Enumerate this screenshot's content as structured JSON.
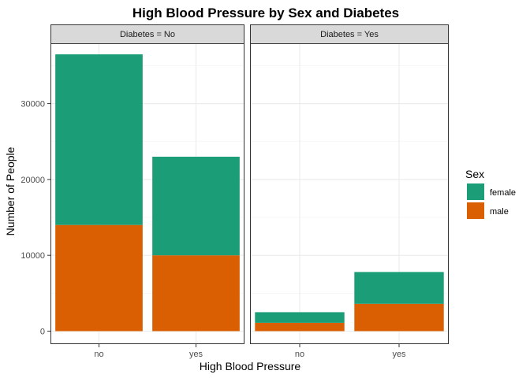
{
  "chart_data": {
    "type": "bar",
    "stacked": true,
    "title": "High Blood Pressure by Sex and Diabetes",
    "xlabel": "High Blood Pressure",
    "ylabel": "Number of People",
    "categories": [
      "no",
      "yes"
    ],
    "yticks": [
      0,
      10000,
      20000,
      30000
    ],
    "ytick_labels": [
      "0",
      "10000",
      "20000",
      "30000"
    ],
    "ylim": [
      0,
      38000
    ],
    "grid": true,
    "legend": {
      "title": "Sex",
      "position": "right",
      "entries": [
        {
          "label": "female",
          "color": "#1B9E77"
        },
        {
          "label": "male",
          "color": "#D95F02"
        }
      ]
    },
    "series": [
      {
        "name": "female",
        "color": "#1B9E77"
      },
      {
        "name": "male",
        "color": "#D95F02"
      }
    ],
    "panels": [
      {
        "strip": "Diabetes = No",
        "stacks": [
          {
            "category": "no",
            "male": 14000,
            "female": 22500
          },
          {
            "category": "yes",
            "male": 10000,
            "female": 13000
          }
        ]
      },
      {
        "strip": "Diabetes = Yes",
        "stacks": [
          {
            "category": "no",
            "male": 1100,
            "female": 1400
          },
          {
            "category": "yes",
            "male": 3600,
            "female": 4200
          }
        ]
      }
    ]
  }
}
